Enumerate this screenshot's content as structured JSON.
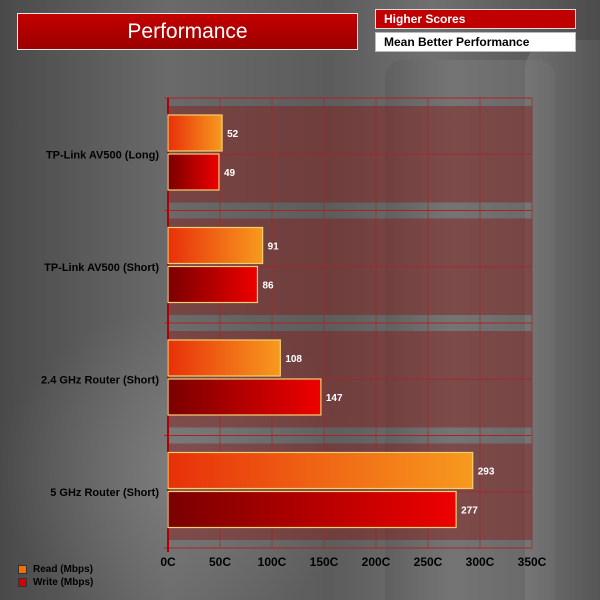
{
  "title": "Performance",
  "notes": {
    "line1": "Higher Scores",
    "line2": "Mean Better Performance"
  },
  "colors": {
    "read_start": "#e8300a",
    "read_end": "#f79a1e",
    "write_start": "#7a0000",
    "write_end": "#ee0000",
    "band": "#8a1818",
    "bar_border": "#f6d070"
  },
  "chart_data": {
    "type": "bar",
    "orientation": "horizontal",
    "categories": [
      "TP-Link AV500 (Long)",
      "TP-Link AV500 (Short)",
      "2.4 GHz Router (Short)",
      "5 GHz Router (Short)"
    ],
    "series": [
      {
        "name": "Read (Mbps)",
        "values": [
          52,
          91,
          108,
          293
        ]
      },
      {
        "name": "Write (Mbps)",
        "values": [
          49,
          86,
          147,
          277
        ]
      }
    ],
    "xlim": [
      0,
      350
    ],
    "ticks": [
      {
        "value": 0,
        "label": "0C"
      },
      {
        "value": 50,
        "label": "50C"
      },
      {
        "value": 100,
        "label": "100C"
      },
      {
        "value": 150,
        "label": "150C"
      },
      {
        "value": 200,
        "label": "200C"
      },
      {
        "value": 250,
        "label": "250C"
      },
      {
        "value": 300,
        "label": "300C"
      },
      {
        "value": 350,
        "label": "350C"
      }
    ],
    "legend_position": "bottom-left",
    "grid": true
  }
}
